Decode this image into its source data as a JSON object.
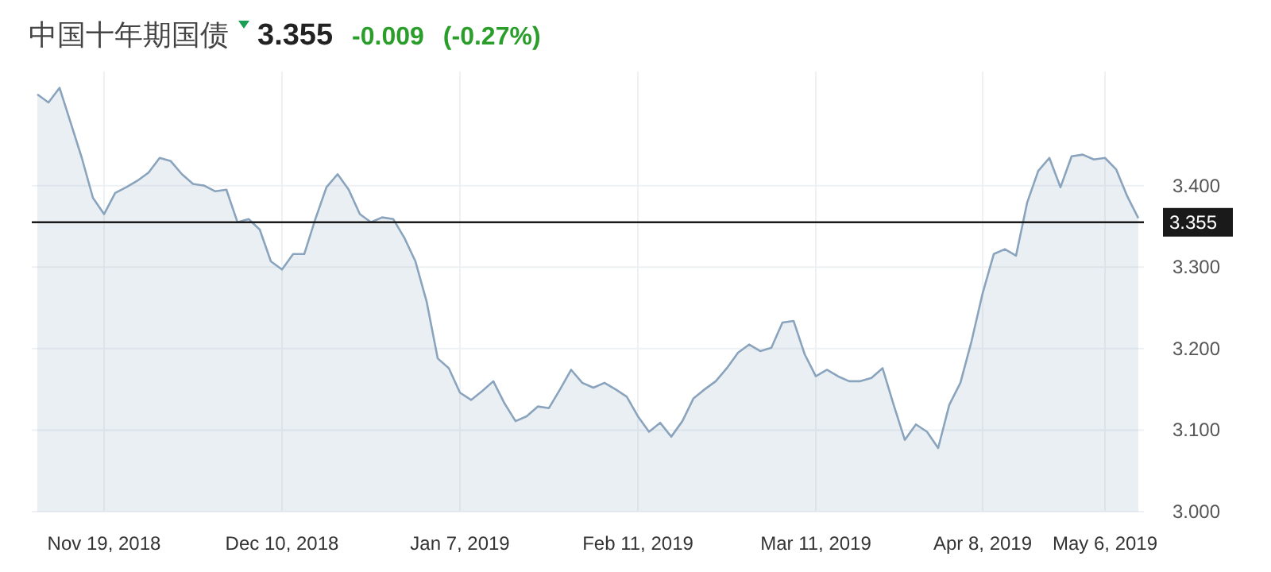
{
  "chart_data": {
    "type": "area",
    "title": "中国十年期国债",
    "annotations": [
      "3.355",
      "-0.009",
      "(-0.27%)"
    ],
    "categories": [
      null,
      null,
      null,
      null,
      null,
      null,
      "Nov 19, 2018",
      null,
      null,
      null,
      null,
      null,
      null,
      null,
      null,
      null,
      null,
      null,
      null,
      null,
      null,
      null,
      "Dec 10, 2018",
      null,
      null,
      null,
      null,
      null,
      null,
      null,
      null,
      null,
      null,
      null,
      null,
      null,
      null,
      null,
      "Jan 7, 2019",
      null,
      null,
      null,
      null,
      null,
      null,
      null,
      null,
      null,
      null,
      null,
      null,
      null,
      null,
      null,
      "Feb 11, 2019",
      null,
      null,
      null,
      null,
      null,
      null,
      null,
      null,
      null,
      null,
      null,
      null,
      null,
      null,
      null,
      "Mar 11, 2019",
      null,
      null,
      null,
      null,
      null,
      null,
      null,
      null,
      null,
      null,
      null,
      null,
      null,
      null,
      "Apr 8, 2019",
      null,
      null,
      null,
      null,
      null,
      null,
      null,
      null,
      null,
      null,
      "May 6, 2019",
      null,
      null,
      null
    ],
    "series": [
      {
        "color": "#8aa4bd",
        "values": [
          3.512,
          3.502,
          3.52,
          3.477,
          3.434,
          3.385,
          3.365,
          3.391,
          3.398,
          3.406,
          3.416,
          3.434,
          3.43,
          3.414,
          3.402,
          3.4,
          3.393,
          3.395,
          3.355,
          3.359,
          3.346,
          3.307,
          3.297,
          3.316,
          3.316,
          3.359,
          3.398,
          3.414,
          3.395,
          3.365,
          3.355,
          3.361,
          3.359,
          3.336,
          3.307,
          3.258,
          3.188,
          3.176,
          3.146,
          3.137,
          3.148,
          3.16,
          3.133,
          3.111,
          3.117,
          3.129,
          3.127,
          3.15,
          3.174,
          3.158,
          3.152,
          3.158,
          3.15,
          3.141,
          3.117,
          3.098,
          3.109,
          3.092,
          3.111,
          3.139,
          3.15,
          3.16,
          3.176,
          3.195,
          3.205,
          3.197,
          3.201,
          3.232,
          3.234,
          3.193,
          3.166,
          3.174,
          3.166,
          3.16,
          3.16,
          3.164,
          3.176,
          3.131,
          3.088,
          3.107,
          3.098,
          3.078,
          3.131,
          3.158,
          3.209,
          3.268,
          3.316,
          3.322,
          3.314,
          3.379,
          3.418,
          3.434,
          3.398,
          3.436,
          3.438,
          3.432,
          3.434,
          3.42,
          3.387,
          3.36
        ]
      }
    ],
    "ylim": [
      3.0,
      3.54
    ],
    "yticks": [
      {
        "value": 3.0,
        "label": "3.000"
      },
      {
        "value": 3.1,
        "label": "3.100"
      },
      {
        "value": 3.2,
        "label": "3.200"
      },
      {
        "value": 3.3,
        "label": "3.300"
      },
      {
        "value": 3.4,
        "label": "3.400"
      }
    ],
    "ref_lines": [
      {
        "axis": "y",
        "value": 3.355,
        "label": "3.355",
        "color": "#1a1a1a"
      }
    ],
    "grid": true
  }
}
